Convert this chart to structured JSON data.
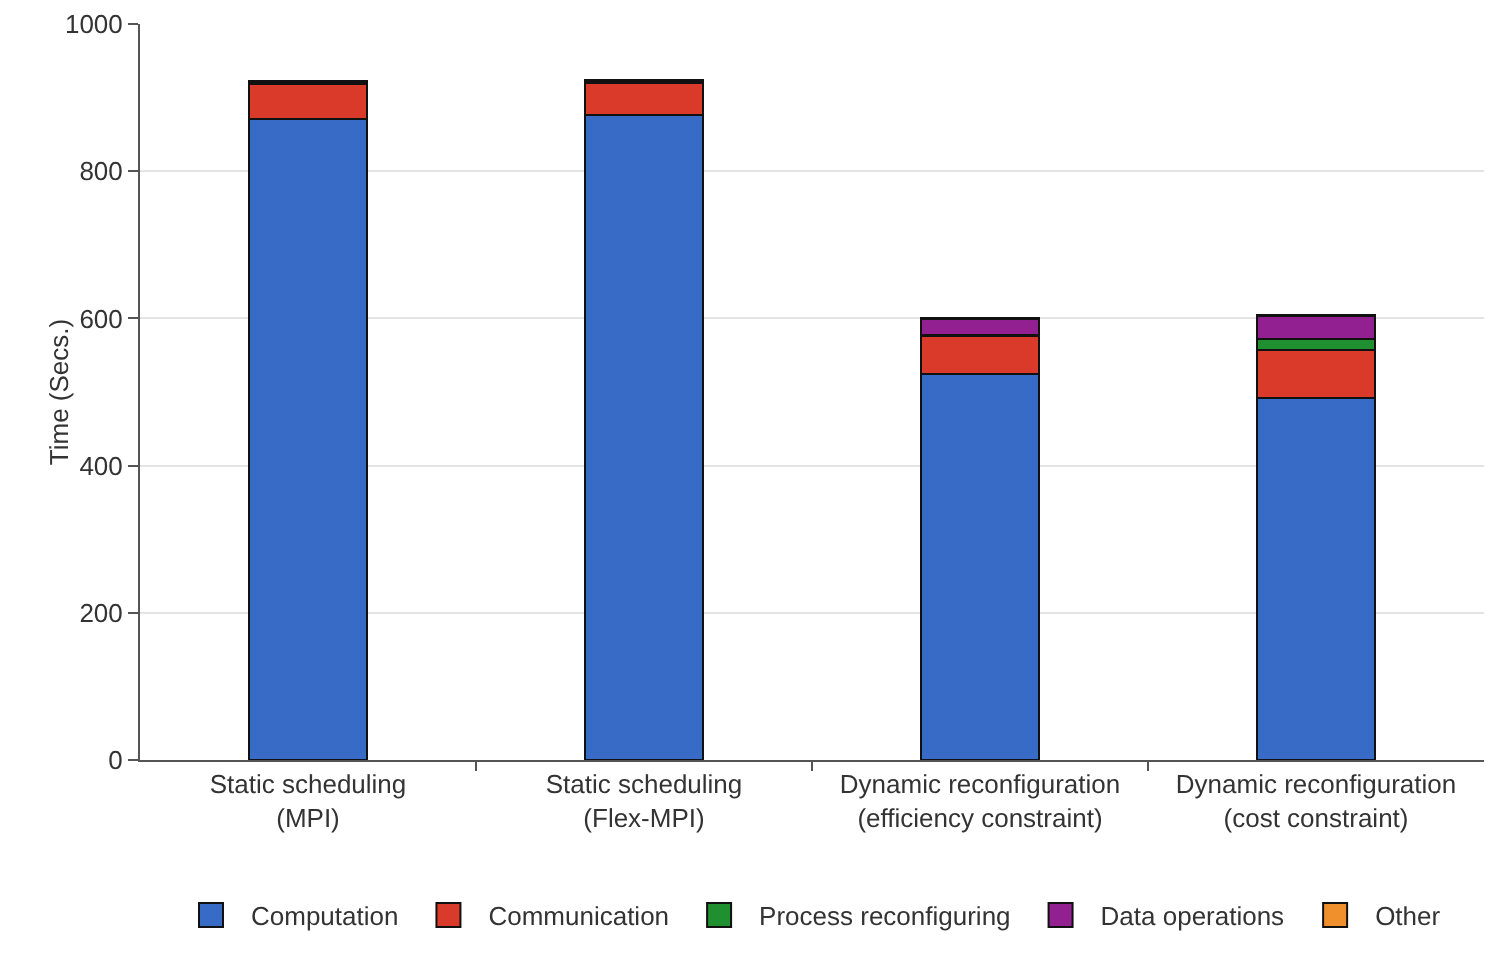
{
  "chart_data": {
    "type": "bar",
    "stacked": true,
    "ylabel": "Time (Secs.)",
    "categories": [
      "Static scheduling\n(MPI)",
      "Static scheduling\n(Flex-MPI)",
      "Dynamic reconfiguration\n(efficiency constraint)",
      "Dynamic reconfiguration\n(cost constraint)"
    ],
    "series": [
      {
        "name": "Computation",
        "color": "#386bc6",
        "values": [
          871,
          876,
          525,
          492
        ]
      },
      {
        "name": "Communication",
        "color": "#da3a2a",
        "values": [
          48,
          44,
          51,
          65
        ]
      },
      {
        "name": "Process reconfiguring",
        "color": "#1f8f2f",
        "values": [
          1,
          1,
          1,
          15
        ]
      },
      {
        "name": "Data operations",
        "color": "#922090",
        "values": [
          3,
          3,
          22,
          31
        ]
      },
      {
        "name": "Other",
        "color": "#f0902c",
        "values": [
          null,
          null,
          1,
          1
        ]
      }
    ],
    "ylim": [
      0,
      1000
    ],
    "yticks": [
      0,
      200,
      400,
      600,
      800,
      1000
    ],
    "grid": "y",
    "legend": "bottom"
  }
}
